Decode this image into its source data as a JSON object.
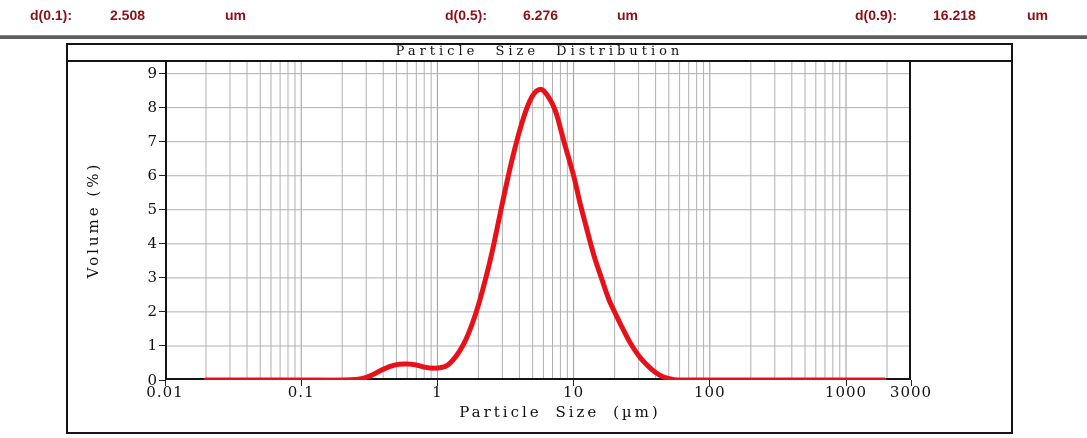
{
  "header": {
    "text_color": "#8b1016",
    "items": [
      {
        "label": "d(0.1):",
        "value": "2.508",
        "unit": "um"
      },
      {
        "label": "d(0.5):",
        "value": "6.276",
        "unit": "um"
      },
      {
        "label": "d(0.9):",
        "value": "16.218",
        "unit": "um"
      }
    ]
  },
  "chart_data": {
    "type": "line",
    "title": "Particle Size Distribution",
    "xlabel": "Particle Size (µm)",
    "ylabel": "Volume (%)",
    "x_scale": "log",
    "xlim": [
      0.01,
      3000
    ],
    "ylim": [
      0,
      9.4
    ],
    "x_ticks": [
      0.01,
      0.1,
      1,
      10,
      100,
      1000,
      3000
    ],
    "x_tick_labels": [
      "0.01",
      "0.1",
      "1",
      "10",
      "100",
      "1000",
      "3000"
    ],
    "y_ticks": [
      0,
      1,
      2,
      3,
      4,
      5,
      6,
      7,
      8,
      9
    ],
    "grid": true,
    "grid_color": "#b0b0b0",
    "decade_grid_color": "#9a9a9a",
    "frame_color": "#141414",
    "line_color": "#e8111a",
    "line_width": 5,
    "legend": null,
    "series": [
      {
        "name": "volume-distribution",
        "points": [
          [
            0.02,
            0
          ],
          [
            0.05,
            0
          ],
          [
            0.1,
            0
          ],
          [
            0.2,
            0
          ],
          [
            0.27,
            0.03
          ],
          [
            0.32,
            0.12
          ],
          [
            0.38,
            0.27
          ],
          [
            0.45,
            0.4
          ],
          [
            0.52,
            0.46
          ],
          [
            0.6,
            0.47
          ],
          [
            0.7,
            0.44
          ],
          [
            0.8,
            0.38
          ],
          [
            0.9,
            0.35
          ],
          [
            1.05,
            0.36
          ],
          [
            1.2,
            0.45
          ],
          [
            1.4,
            0.75
          ],
          [
            1.6,
            1.15
          ],
          [
            1.8,
            1.65
          ],
          [
            2.0,
            2.2
          ],
          [
            2.3,
            3.1
          ],
          [
            2.6,
            4.0
          ],
          [
            3.0,
            5.2
          ],
          [
            3.5,
            6.4
          ],
          [
            4.0,
            7.3
          ],
          [
            4.5,
            7.95
          ],
          [
            5.0,
            8.35
          ],
          [
            5.5,
            8.52
          ],
          [
            6.0,
            8.5
          ],
          [
            6.8,
            8.2
          ],
          [
            7.5,
            7.8
          ],
          [
            8.5,
            7.0
          ],
          [
            10.0,
            6.0
          ],
          [
            11.0,
            5.3
          ],
          [
            12.0,
            4.7
          ],
          [
            14.0,
            3.7
          ],
          [
            16.0,
            3.0
          ],
          [
            18.0,
            2.4
          ],
          [
            20.0,
            2.0
          ],
          [
            23.0,
            1.5
          ],
          [
            26.0,
            1.1
          ],
          [
            30.0,
            0.72
          ],
          [
            35.0,
            0.42
          ],
          [
            40.0,
            0.22
          ],
          [
            45.0,
            0.1
          ],
          [
            50.0,
            0.04
          ],
          [
            55.0,
            0.01
          ],
          [
            60.0,
            0
          ],
          [
            100,
            0
          ],
          [
            300,
            0
          ],
          [
            1000,
            0
          ],
          [
            1900,
            0
          ]
        ]
      }
    ]
  }
}
